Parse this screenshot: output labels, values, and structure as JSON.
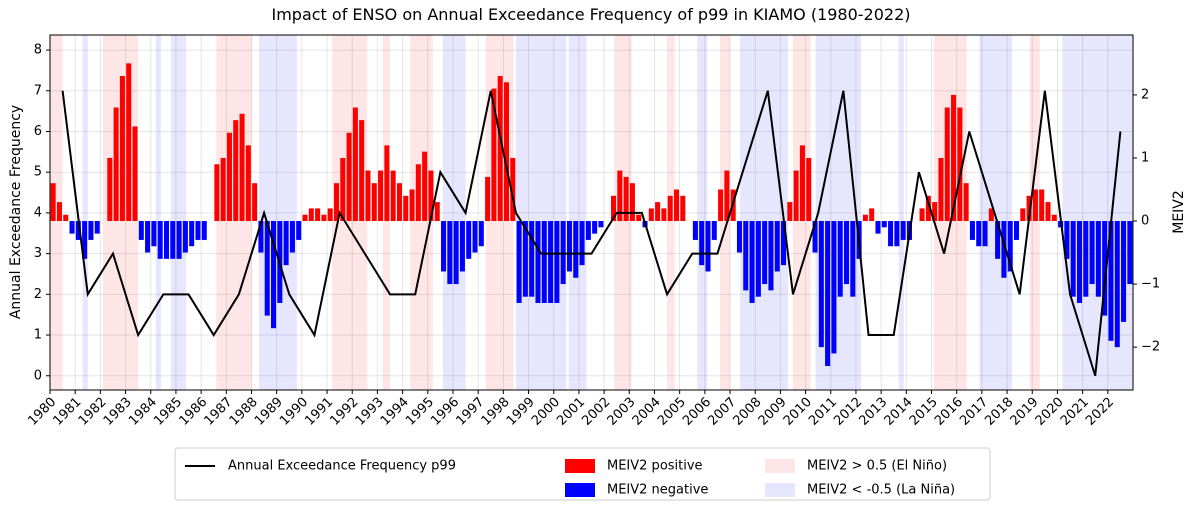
{
  "chart_data": {
    "type": "bar_line_dual_axis",
    "title": "Impact of ENSO on Annual Exceedance Frequency of p99 in KIAMO (1980-2022)",
    "y_label": "Annual Exceedance Frequency",
    "y2_label": "MEIV2",
    "xlim": [
      1980,
      2023
    ],
    "ylim": [
      -0.35,
      8.37
    ],
    "y2lim": [
      -2.68,
      2.95
    ],
    "xticks": [
      1980,
      1981,
      1982,
      1983,
      1984,
      1985,
      1986,
      1987,
      1988,
      1989,
      1990,
      1991,
      1992,
      1993,
      1994,
      1995,
      1996,
      1997,
      1998,
      1999,
      2000,
      2001,
      2002,
      2003,
      2004,
      2005,
      2006,
      2007,
      2008,
      2009,
      2010,
      2011,
      2012,
      2013,
      2014,
      2015,
      2016,
      2017,
      2018,
      2019,
      2020,
      2021,
      2022
    ],
    "yticks": [
      0,
      1,
      2,
      3,
      4,
      5,
      6,
      7,
      8
    ],
    "y2ticks": [
      {
        "value": -2,
        "label": "−2"
      },
      {
        "value": -1,
        "label": "−1"
      },
      0,
      1,
      2
    ],
    "grid": true,
    "series": [
      {
        "name": "Annual Exceedance Frequency p99",
        "color": "#000000",
        "x": [
          1980.5,
          1981.5,
          1982.5,
          1983.5,
          1984.5,
          1985.5,
          1986.5,
          1987.5,
          1988.5,
          1989.5,
          1990.5,
          1991.5,
          1992.5,
          1993.5,
          1994.5,
          1995.5,
          1996.5,
          1997.5,
          1998.5,
          1999.5,
          2000.5,
          2001.5,
          2002.5,
          2003.5,
          2004.5,
          2005.5,
          2006.5,
          2007.5,
          2008.5,
          2009.5,
          2010.5,
          2011.5,
          2012.5,
          2013.5,
          2014.5,
          2015.5,
          2016.5,
          2017.5,
          2018.5,
          2019.5,
          2020.5,
          2021.5,
          2022.5
        ],
        "values": [
          7,
          2,
          3,
          1,
          2,
          2,
          1,
          2,
          4,
          2,
          1,
          4,
          3,
          2,
          2,
          5,
          4,
          7,
          4,
          3,
          3,
          3,
          4,
          4,
          2,
          3,
          3,
          5,
          7,
          2,
          4,
          7,
          1,
          1,
          5,
          3,
          6,
          4,
          2,
          7,
          2,
          0,
          6
        ]
      }
    ],
    "meiv2": {
      "axis": "y2",
      "positive_name": "MEIV2 positive",
      "negative_name": "MEIV2 negative",
      "positive_color": "#ff0000",
      "negative_color": "#0000ff",
      "x": [
        1980.125,
        1980.375,
        1980.625,
        1980.875,
        1981.125,
        1981.375,
        1981.625,
        1981.875,
        1982.125,
        1982.375,
        1982.625,
        1982.875,
        1983.125,
        1983.375,
        1983.625,
        1983.875,
        1984.125,
        1984.375,
        1984.625,
        1984.875,
        1985.125,
        1985.375,
        1985.625,
        1985.875,
        1986.125,
        1986.375,
        1986.625,
        1986.875,
        1987.125,
        1987.375,
        1987.625,
        1987.875,
        1988.125,
        1988.375,
        1988.625,
        1988.875,
        1989.125,
        1989.375,
        1989.625,
        1989.875,
        1990.125,
        1990.375,
        1990.625,
        1990.875,
        1991.125,
        1991.375,
        1991.625,
        1991.875,
        1992.125,
        1992.375,
        1992.625,
        1992.875,
        1993.125,
        1993.375,
        1993.625,
        1993.875,
        1994.125,
        1994.375,
        1994.625,
        1994.875,
        1995.125,
        1995.375,
        1995.625,
        1995.875,
        1996.125,
        1996.375,
        1996.625,
        1996.875,
        1997.125,
        1997.375,
        1997.625,
        1997.875,
        1998.125,
        1998.375,
        1998.625,
        1998.875,
        1999.125,
        1999.375,
        1999.625,
        1999.875,
        2000.125,
        2000.375,
        2000.625,
        2000.875,
        2001.125,
        2001.375,
        2001.625,
        2001.875,
        2002.125,
        2002.375,
        2002.625,
        2002.875,
        2003.125,
        2003.375,
        2003.625,
        2003.875,
        2004.125,
        2004.375,
        2004.625,
        2004.875,
        2005.125,
        2005.375,
        2005.625,
        2005.875,
        2006.125,
        2006.375,
        2006.625,
        2006.875,
        2007.125,
        2007.375,
        2007.625,
        2007.875,
        2008.125,
        2008.375,
        2008.625,
        2008.875,
        2009.125,
        2009.375,
        2009.625,
        2009.875,
        2010.125,
        2010.375,
        2010.625,
        2010.875,
        2011.125,
        2011.375,
        2011.625,
        2011.875,
        2012.125,
        2012.375,
        2012.625,
        2012.875,
        2013.125,
        2013.375,
        2013.625,
        2013.875,
        2014.125,
        2014.375,
        2014.625,
        2014.875,
        2015.125,
        2015.375,
        2015.625,
        2015.875,
        2016.125,
        2016.375,
        2016.625,
        2016.875,
        2017.125,
        2017.375,
        2017.625,
        2017.875,
        2018.125,
        2018.375,
        2018.625,
        2018.875,
        2019.125,
        2019.375,
        2019.625,
        2019.875,
        2020.125,
        2020.375,
        2020.625,
        2020.875,
        2021.125,
        2021.375,
        2021.625,
        2021.875,
        2022.125,
        2022.375,
        2022.625,
        2022.875
      ],
      "values": [
        0.6,
        0.3,
        0.1,
        -0.2,
        -0.3,
        -0.6,
        -0.3,
        -0.2,
        0.0,
        1.0,
        1.8,
        2.3,
        2.5,
        1.5,
        -0.3,
        -0.5,
        -0.4,
        -0.6,
        -0.6,
        -0.6,
        -0.6,
        -0.5,
        -0.4,
        -0.3,
        -0.3,
        0.0,
        0.9,
        1.0,
        1.4,
        1.6,
        1.7,
        1.2,
        0.6,
        -0.5,
        -1.5,
        -1.7,
        -1.3,
        -0.7,
        -0.5,
        -0.3,
        0.1,
        0.2,
        0.2,
        0.1,
        0.2,
        0.6,
        1.0,
        1.4,
        1.8,
        1.6,
        0.8,
        0.6,
        0.8,
        1.2,
        0.8,
        0.6,
        0.4,
        0.5,
        0.9,
        1.1,
        0.8,
        0.3,
        -0.8,
        -1.0,
        -1.0,
        -0.8,
        -0.6,
        -0.5,
        -0.4,
        0.7,
        2.1,
        2.3,
        2.2,
        1.0,
        -1.3,
        -1.2,
        -1.2,
        -1.3,
        -1.3,
        -1.3,
        -1.3,
        -1.0,
        -0.8,
        -0.9,
        -0.7,
        -0.3,
        -0.2,
        -0.1,
        0.0,
        0.4,
        0.8,
        0.7,
        0.6,
        0.1,
        -0.1,
        0.2,
        0.3,
        0.2,
        0.4,
        0.5,
        0.4,
        0.0,
        -0.3,
        -0.7,
        -0.8,
        -0.3,
        0.5,
        0.8,
        0.5,
        -0.5,
        -1.1,
        -1.3,
        -1.2,
        -1.0,
        -1.1,
        -0.8,
        -0.7,
        0.3,
        0.8,
        1.2,
        1.0,
        -0.5,
        -2.0,
        -2.3,
        -2.1,
        -1.2,
        -1.0,
        -1.2,
        -0.6,
        0.1,
        0.2,
        -0.2,
        -0.1,
        -0.4,
        -0.4,
        -0.3,
        -0.3,
        0.0,
        0.2,
        0.4,
        0.3,
        1.0,
        1.8,
        2.0,
        1.8,
        0.6,
        -0.3,
        -0.4,
        -0.4,
        0.2,
        -0.6,
        -0.9,
        -0.8,
        -0.3,
        0.2,
        0.4,
        0.5,
        0.5,
        0.3,
        0.1,
        -0.1,
        -0.6,
        -1.2,
        -1.3,
        -1.2,
        -1.0,
        -1.2,
        -1.5,
        -1.9,
        -2.0,
        -1.6,
        -1.0
      ]
    },
    "el_nino": {
      "name": "MEIV2 > 0.5 (El Niño)",
      "color": "#ffe6e6",
      "periods": [
        [
          1980.0,
          1980.5
        ],
        [
          1982.1,
          1983.5
        ],
        [
          1986.6,
          1988.0
        ],
        [
          1991.2,
          1992.6
        ],
        [
          1993.2,
          1993.5
        ],
        [
          1994.3,
          1995.2
        ],
        [
          1997.3,
          1998.4
        ],
        [
          2002.4,
          2003.1
        ],
        [
          2004.5,
          2004.8
        ],
        [
          2006.6,
          2007.0
        ],
        [
          2009.5,
          2010.2
        ],
        [
          2015.1,
          2016.4
        ],
        [
          2018.9,
          2019.3
        ]
      ]
    },
    "la_nina": {
      "name": "MEIV2 < -0.5 (La Niña)",
      "color": "#e6e6ff",
      "periods": [
        [
          1981.3,
          1981.5
        ],
        [
          1984.2,
          1984.4
        ],
        [
          1984.8,
          1985.4
        ],
        [
          1988.3,
          1989.8
        ],
        [
          1995.6,
          1996.5
        ],
        [
          1998.5,
          2000.5
        ],
        [
          2000.6,
          2001.3
        ],
        [
          2005.7,
          2006.1
        ],
        [
          2007.4,
          2009.3
        ],
        [
          2010.4,
          2012.2
        ],
        [
          2013.7,
          2013.9
        ],
        [
          2016.9,
          2018.2
        ],
        [
          2020.2,
          2023.0
        ]
      ]
    }
  }
}
